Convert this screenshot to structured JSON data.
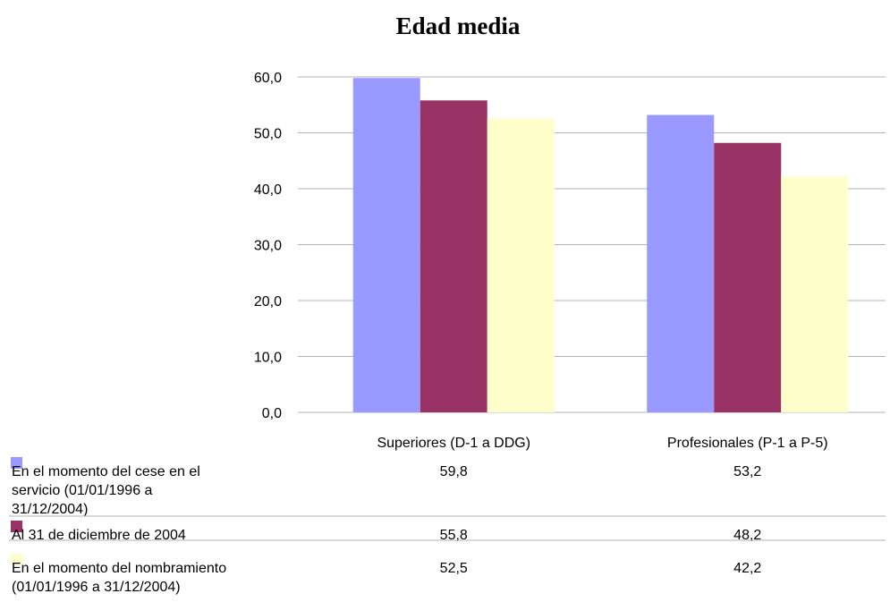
{
  "chart_data": {
    "type": "bar",
    "title": "Edad media",
    "categories": [
      "Superiores (D-1 a DDG)",
      "Profesionales (P-1 a P-5)"
    ],
    "series": [
      {
        "name": "En el momento del cese en el servicio (01/01/1996 a 31/12/2004)",
        "name_lines": [
          "En el momento del cese en el",
          "servicio (01/01/1996 a",
          "31/12/2004)"
        ],
        "color": "#9999ff",
        "values": [
          59.8,
          53.2
        ],
        "value_labels": [
          "59,8",
          "53,2"
        ]
      },
      {
        "name": "Al 31 de diciembre de 2004",
        "name_lines": [
          "Al 31 de diciembre de 2004"
        ],
        "color": "#993366",
        "values": [
          55.8,
          48.2
        ],
        "value_labels": [
          "55,8",
          "48,2"
        ]
      },
      {
        "name": "En el momento del nombramiento (01/01/1996 a 31/12/2004)",
        "name_lines": [
          "En el momento del nombramiento",
          "(01/01/1996 a 31/12/2004)"
        ],
        "color": "#ffffcc",
        "values": [
          52.5,
          42.2
        ],
        "value_labels": [
          "52,5",
          "42,2"
        ]
      }
    ],
    "y_ticks": [
      "0,0",
      "10,0",
      "20,0",
      "30,0",
      "40,0",
      "50,0",
      "60,0"
    ],
    "ylim": [
      0,
      60
    ],
    "grid": true,
    "legend": "data table below chart"
  }
}
